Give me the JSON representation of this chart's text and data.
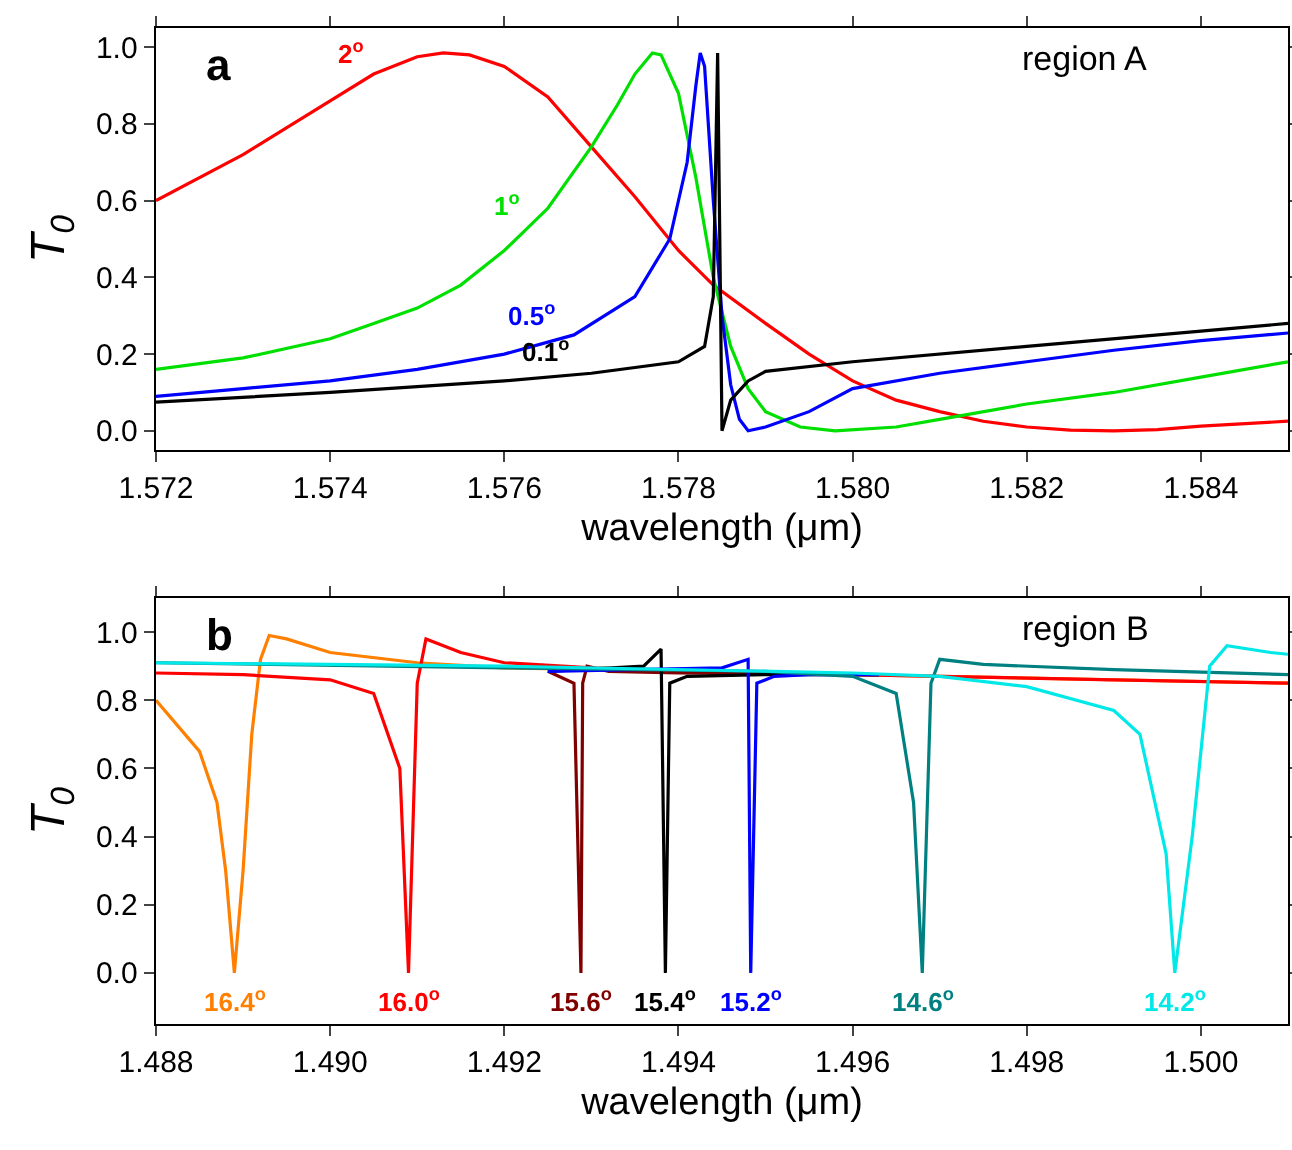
{
  "chart_data": [
    {
      "type": "line",
      "xlabel": "wavelength (μm)",
      "ylabel": "T$_{0}$",
      "annotations": [
        "a",
        "region A"
      ],
      "legend": false,
      "grid": false,
      "line_style": "solid",
      "marker": "none",
      "xlim": [
        1.572,
        1.585
      ],
      "xticks": [
        {
          "value": 1.572,
          "label": "1.572"
        },
        {
          "value": 1.574,
          "label": "1.574"
        },
        {
          "value": 1.576,
          "label": "1.576"
        },
        {
          "value": 1.578,
          "label": "1.578"
        },
        {
          "value": 1.58,
          "label": "1.580"
        },
        {
          "value": 1.582,
          "label": "1.582"
        },
        {
          "value": 1.584,
          "label": "1.584"
        }
      ],
      "ylim": [
        -0.05,
        1.05
      ],
      "yticks": [
        {
          "value": 0,
          "label": "0.0"
        },
        {
          "value": 0.2,
          "label": "0.2"
        },
        {
          "value": 0.4,
          "label": "0.4"
        },
        {
          "value": 0.6,
          "label": "0.6"
        },
        {
          "value": 0.8,
          "label": "0.8"
        },
        {
          "value": 1,
          "label": "1.0"
        }
      ],
      "series": [
        {
          "name": "2$^{o}$",
          "color": "#ff0000",
          "x": [
            1.572,
            1.573,
            1.574,
            1.5745,
            1.575,
            1.5753,
            1.5756,
            1.576,
            1.5765,
            1.577,
            1.5775,
            1.578,
            1.5784,
            1.579,
            1.5795,
            1.58,
            1.5805,
            1.581,
            1.5815,
            1.582,
            1.5825,
            1.583,
            1.5835,
            1.584,
            1.585
          ],
          "values": [
            0.6,
            0.72,
            0.86,
            0.93,
            0.975,
            0.985,
            0.98,
            0.95,
            0.87,
            0.74,
            0.61,
            0.47,
            0.38,
            0.28,
            0.2,
            0.13,
            0.08,
            0.05,
            0.025,
            0.01,
            0.002,
            0,
            0.003,
            0.012,
            0.025
          ]
        },
        {
          "name": "1$^{o}$",
          "color": "#00e000",
          "x": [
            1.572,
            1.573,
            1.574,
            1.5745,
            1.575,
            1.5755,
            1.576,
            1.5765,
            1.577,
            1.5773,
            1.5775,
            1.5777,
            1.5778,
            1.578,
            1.5782,
            1.5784,
            1.5786,
            1.5788,
            1.579,
            1.5794,
            1.5798,
            1.5805,
            1.581,
            1.582,
            1.583,
            1.584,
            1.585
          ],
          "values": [
            0.16,
            0.19,
            0.24,
            0.28,
            0.32,
            0.38,
            0.47,
            0.58,
            0.74,
            0.85,
            0.93,
            0.985,
            0.98,
            0.88,
            0.66,
            0.4,
            0.22,
            0.11,
            0.05,
            0.01,
            0,
            0.01,
            0.03,
            0.07,
            0.1,
            0.14,
            0.18
          ]
        },
        {
          "name": "0.5$^{o}$",
          "color": "#0000ff",
          "x": [
            1.572,
            1.573,
            1.574,
            1.575,
            1.576,
            1.5768,
            1.5775,
            1.5779,
            1.5781,
            1.5782,
            1.57825,
            1.5783,
            1.5784,
            1.5785,
            1.5786,
            1.5787,
            1.5788,
            1.579,
            1.5795,
            1.58,
            1.581,
            1.582,
            1.583,
            1.584,
            1.585
          ],
          "values": [
            0.09,
            0.11,
            0.13,
            0.16,
            0.2,
            0.25,
            0.35,
            0.5,
            0.7,
            0.9,
            0.985,
            0.95,
            0.6,
            0.3,
            0.12,
            0.03,
            0,
            0.01,
            0.05,
            0.11,
            0.15,
            0.18,
            0.21,
            0.235,
            0.255
          ]
        },
        {
          "name": "0.1$^{o}$",
          "color": "#000000",
          "x": [
            1.572,
            1.574,
            1.576,
            1.577,
            1.578,
            1.5783,
            1.5784,
            1.57845,
            1.5785,
            1.5786,
            1.5788,
            1.579,
            1.58,
            1.582,
            1.584,
            1.585
          ],
          "values": [
            0.075,
            0.1,
            0.13,
            0.15,
            0.18,
            0.22,
            0.35,
            0.985,
            0,
            0.08,
            0.13,
            0.155,
            0.18,
            0.22,
            0.26,
            0.28
          ]
        }
      ]
    },
    {
      "type": "line",
      "xlabel": "wavelength (μm)",
      "ylabel": "T$_{0}$",
      "annotations": [
        "b",
        "region B"
      ],
      "legend": false,
      "grid": false,
      "line_style": "solid",
      "marker": "none",
      "xlim": [
        1.488,
        1.501
      ],
      "xticks": [
        {
          "value": 1.488,
          "label": "1.488"
        },
        {
          "value": 1.49,
          "label": "1.490"
        },
        {
          "value": 1.492,
          "label": "1.492"
        },
        {
          "value": 1.494,
          "label": "1.494"
        },
        {
          "value": 1.496,
          "label": "1.496"
        },
        {
          "value": 1.498,
          "label": "1.498"
        },
        {
          "value": 1.5,
          "label": "1.500"
        }
      ],
      "ylim": [
        -0.15,
        1.1
      ],
      "yticks": [
        {
          "value": 0,
          "label": "0.0"
        },
        {
          "value": 0.2,
          "label": "0.2"
        },
        {
          "value": 0.4,
          "label": "0.4"
        },
        {
          "value": 0.6,
          "label": "0.6"
        },
        {
          "value": 0.8,
          "label": "0.8"
        },
        {
          "value": 1,
          "label": "1.0"
        }
      ],
      "series": [
        {
          "name": "16.4$^{o}$",
          "color": "#ff8000",
          "x": [
            1.488,
            1.4885,
            1.4887,
            1.4888,
            1.4889,
            1.489,
            1.4891,
            1.4892,
            1.4893,
            1.4895,
            1.49,
            1.491,
            1.492,
            1.494,
            1.496,
            1.498,
            1.5,
            1.501
          ],
          "values": [
            0.8,
            0.65,
            0.5,
            0.3,
            0,
            0.3,
            0.7,
            0.92,
            0.99,
            0.98,
            0.94,
            0.91,
            0.895,
            0.885,
            0.875,
            0.865,
            0.855,
            0.85
          ]
        },
        {
          "name": "16.0$^{o}$",
          "color": "#ff0000",
          "x": [
            1.488,
            1.489,
            1.49,
            1.4905,
            1.4908,
            1.4909,
            1.491,
            1.4911,
            1.4915,
            1.492,
            1.493,
            1.495,
            1.497,
            1.499,
            1.501
          ],
          "values": [
            0.88,
            0.875,
            0.86,
            0.82,
            0.6,
            0,
            0.85,
            0.98,
            0.94,
            0.91,
            0.895,
            0.88,
            0.87,
            0.86,
            0.85
          ]
        },
        {
          "name": "15.6$^{o}$",
          "color": "#800000",
          "x": [
            1.4925,
            1.4928,
            1.49288,
            1.4929,
            1.49295,
            1.4932,
            1.494,
            1.4963
          ],
          "values": [
            0.885,
            0.85,
            0,
            0.85,
            0.9,
            0.885,
            0.88,
            0.875
          ]
        },
        {
          "name": "15.4$^{o}$",
          "color": "#000000",
          "x": [
            1.4925,
            1.4936,
            1.4938,
            1.49385,
            1.4939,
            1.4941,
            1.495,
            1.4963
          ],
          "values": [
            0.885,
            0.9,
            0.95,
            0,
            0.85,
            0.87,
            0.875,
            0.875
          ]
        },
        {
          "name": "15.2$^{o}$",
          "color": "#0000ff",
          "x": [
            1.4925,
            1.4945,
            1.4948,
            1.49483,
            1.4949,
            1.4951,
            1.4955,
            1.4963
          ],
          "values": [
            0.885,
            0.895,
            0.92,
            0,
            0.85,
            0.87,
            0.875,
            0.875
          ]
        },
        {
          "name": "14.6$^{o}$",
          "color": "#008080",
          "x": [
            1.488,
            1.492,
            1.495,
            1.496,
            1.4965,
            1.4967,
            1.4968,
            1.4969,
            1.497,
            1.4975,
            1.499,
            1.501
          ],
          "values": [
            0.91,
            0.895,
            0.885,
            0.87,
            0.82,
            0.5,
            0,
            0.85,
            0.92,
            0.905,
            0.89,
            0.875
          ]
        },
        {
          "name": "14.2$^{o}$",
          "color": "#00e8e8",
          "x": [
            1.488,
            1.492,
            1.496,
            1.497,
            1.498,
            1.499,
            1.4993,
            1.4996,
            1.4997,
            1.4999,
            1.5001,
            1.5003,
            1.5008,
            1.501
          ],
          "values": [
            0.91,
            0.9,
            0.88,
            0.87,
            0.84,
            0.77,
            0.7,
            0.35,
            0,
            0.4,
            0.9,
            0.96,
            0.94,
            0.935
          ]
        }
      ]
    }
  ]
}
